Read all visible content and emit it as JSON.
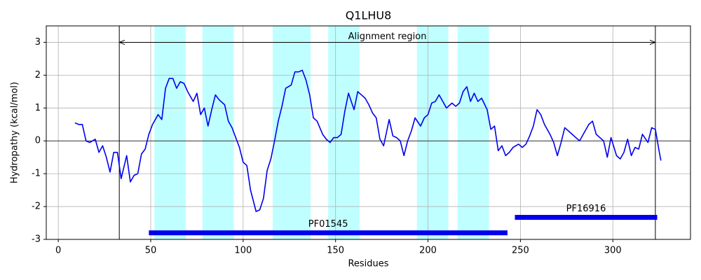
{
  "chart_data": {
    "type": "line",
    "title": "Q1LHU8",
    "xlabel": "Residues",
    "ylabel": "Hydropathy (kcal/mol)",
    "x": [
      9,
      11,
      13,
      15,
      17,
      20,
      22,
      24,
      26,
      28,
      30,
      32,
      34,
      37,
      39,
      41,
      43,
      45,
      47,
      49,
      51,
      54,
      56,
      58,
      60,
      62,
      64,
      66,
      68,
      70,
      73,
      75,
      77,
      79,
      81,
      83,
      85,
      87,
      90,
      92,
      94,
      96,
      98,
      100,
      102,
      104,
      107,
      109,
      111,
      113,
      115,
      117,
      119,
      121,
      123,
      126,
      128,
      130,
      132,
      134,
      136,
      138,
      140,
      143,
      145,
      147,
      149,
      151,
      153,
      155,
      157,
      160,
      162,
      164,
      166,
      168,
      170,
      172,
      174,
      176,
      179,
      181,
      183,
      185,
      187,
      189,
      191,
      193,
      196,
      198,
      200,
      202,
      204,
      206,
      208,
      210,
      213,
      215,
      217,
      219,
      221,
      223,
      225,
      227,
      229,
      232,
      234,
      236,
      238,
      240,
      242,
      244,
      246,
      249,
      251,
      253,
      255,
      257,
      259,
      261,
      263,
      266,
      268,
      270,
      272,
      274,
      276,
      278,
      280,
      282,
      285,
      287,
      289,
      291,
      293,
      295,
      297,
      299,
      302,
      304,
      306,
      308,
      310,
      312,
      314,
      316,
      319,
      321,
      323,
      325,
      326
    ],
    "values": [
      0.55,
      0.5,
      0.5,
      0.0,
      -0.05,
      0.05,
      -0.35,
      -0.15,
      -0.5,
      -0.95,
      -0.35,
      -0.35,
      -1.15,
      -0.45,
      -1.25,
      -1.05,
      -1.0,
      -0.4,
      -0.25,
      0.2,
      0.5,
      0.8,
      0.65,
      1.6,
      1.9,
      1.9,
      1.6,
      1.8,
      1.75,
      1.5,
      1.2,
      1.45,
      0.8,
      1.0,
      0.45,
      0.95,
      1.4,
      1.25,
      1.1,
      0.6,
      0.4,
      0.1,
      -0.2,
      -0.65,
      -0.75,
      -1.5,
      -2.15,
      -2.1,
      -1.75,
      -0.9,
      -0.55,
      0.0,
      0.6,
      1.05,
      1.6,
      1.7,
      2.1,
      2.1,
      2.15,
      1.85,
      1.4,
      0.7,
      0.6,
      0.2,
      0.05,
      -0.05,
      0.1,
      0.1,
      0.2,
      0.9,
      1.45,
      0.95,
      1.5,
      1.4,
      1.3,
      1.1,
      0.85,
      0.7,
      0.05,
      -0.15,
      0.65,
      0.15,
      0.1,
      0.0,
      -0.45,
      0.0,
      0.3,
      0.7,
      0.45,
      0.7,
      0.8,
      1.15,
      1.2,
      1.4,
      1.2,
      1.0,
      1.15,
      1.05,
      1.15,
      1.5,
      1.65,
      1.2,
      1.45,
      1.2,
      1.3,
      0.95,
      0.35,
      0.45,
      -0.3,
      -0.15,
      -0.45,
      -0.35,
      -0.2,
      -0.1,
      -0.2,
      -0.1,
      0.15,
      0.45,
      0.95,
      0.8,
      0.5,
      0.2,
      -0.05,
      -0.45,
      -0.05,
      0.4,
      0.3,
      0.2,
      0.1,
      0.0,
      0.3,
      0.5,
      0.6,
      0.2,
      0.1,
      0.0,
      -0.5,
      0.1,
      -0.45,
      -0.55,
      -0.35,
      0.05,
      -0.45,
      -0.2,
      -0.25,
      0.2,
      -0.05,
      0.4,
      0.35,
      -0.3,
      -0.6
    ],
    "color": "#0000ee",
    "xlim": [
      -6.5,
      342
    ],
    "xticks": [
      0,
      50,
      100,
      150,
      200,
      250,
      300
    ],
    "ylim": [
      -3,
      3.5
    ],
    "yticks": [
      -3,
      -2,
      -1,
      0,
      1,
      2,
      3
    ],
    "grid": true,
    "regions": [
      [
        52,
        69
      ],
      [
        78,
        95
      ],
      [
        116,
        136.5
      ],
      [
        146,
        163
      ],
      [
        194,
        211
      ],
      [
        216,
        233
      ]
    ],
    "region_color": "#c0ffff",
    "vlines": [
      33,
      323
    ],
    "arrow": {
      "label": "Alignment region",
      "start": 33,
      "end": 323,
      "y": 3
    },
    "domains": [
      {
        "label": "PF01545",
        "start": 49,
        "end": 243,
        "y": -2.8
      },
      {
        "label": "PF16916",
        "start": 247,
        "end": 324,
        "y": -2.33
      }
    ],
    "domain_color": "#0000ee"
  }
}
